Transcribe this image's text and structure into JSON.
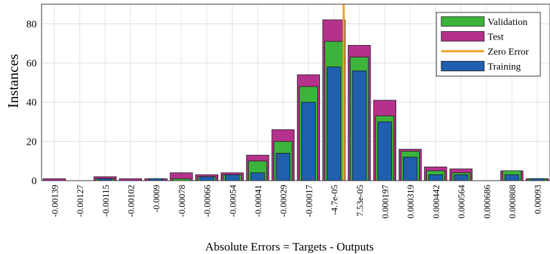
{
  "chart_data": {
    "type": "bar",
    "xlabel": "Absolute Errors = Targets - Outputs",
    "ylabel": "Instances",
    "ylim": [
      0,
      90
    ],
    "yticks": [
      0,
      20,
      40,
      60,
      80
    ],
    "grid": true,
    "legend_position": "top-right",
    "categories": [
      "-0.00139",
      "-0.00127",
      "-0.00115",
      "-0.00102",
      "-0.0009",
      "-0.00078",
      "-0.00066",
      "-0.00054",
      "-0.00041",
      "-0.00029",
      "-0.00017",
      "-4.7e-05",
      "7.53e-05",
      "0.000197",
      "0.000319",
      "0.000442",
      "0.000564",
      "0.000686",
      "0.000808",
      "0.00093"
    ],
    "series": [
      {
        "name": "Validation",
        "color": "#3cb43c",
        "values": [
          0,
          0,
          1,
          0,
          0,
          1,
          2,
          3,
          10,
          20,
          48,
          71,
          63,
          33,
          15,
          5,
          4,
          0,
          5,
          1
        ]
      },
      {
        "name": "Test",
        "color": "#b4328c",
        "values": [
          1,
          0,
          2,
          1,
          1,
          4,
          3,
          4,
          13,
          26,
          54,
          82,
          69,
          41,
          16,
          7,
          6,
          0,
          5,
          1
        ]
      },
      {
        "name": "Training",
        "color": "#1f5fae",
        "values": [
          0,
          0,
          1,
          0,
          1,
          0,
          2,
          3,
          4,
          14,
          40,
          58,
          56,
          30,
          12,
          3,
          3,
          0,
          3,
          1
        ]
      }
    ],
    "zero_error": {
      "name": "Zero Error",
      "color": "#f0a020",
      "x": 0
    }
  }
}
